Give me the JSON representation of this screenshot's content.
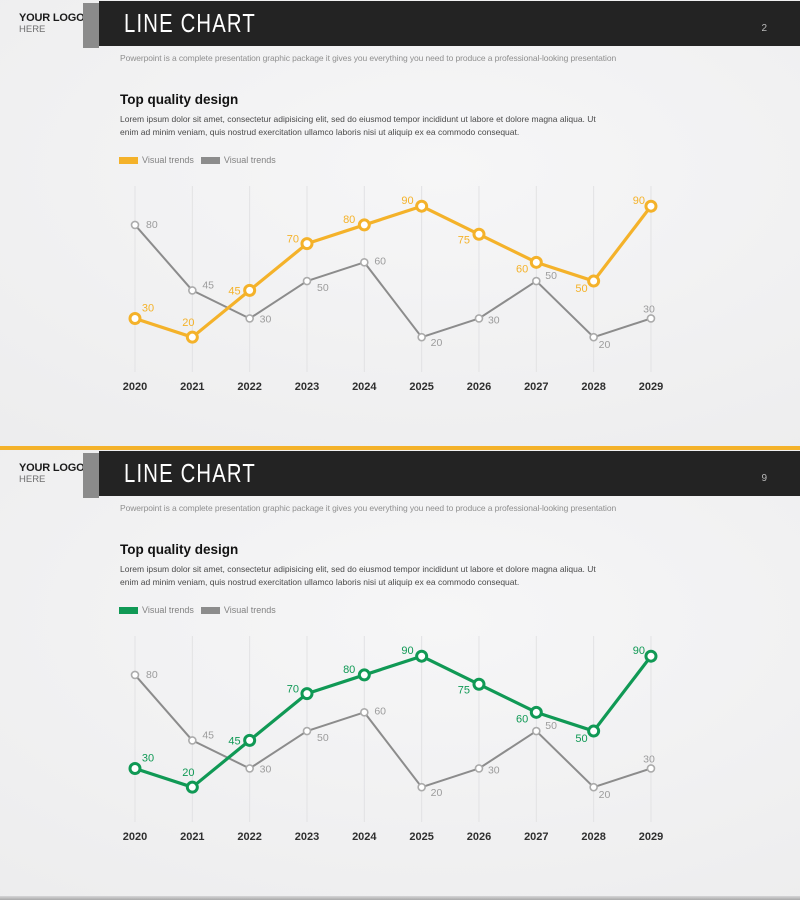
{
  "page": {
    "divider_color": "#F4B22A"
  },
  "slides": [
    {
      "logo_line1": "YOUR LOGO",
      "logo_line2": "HERE",
      "title": "LINE CHART",
      "page_number": "2",
      "subtitle": "Powerpoint is a complete presentation graphic package it gives you everything you need to produce a professional-looking presentation",
      "heading": "Top quality design",
      "body": "Lorem ipsum dolor sit amet, consectetur adipisicing elit, sed do eiusmod tempor incididunt ut labore et dolore magna aliqua. Ut enim ad minim veniam, quis nostrud exercitation ullamco laboris nisi ut aliquip ex ea commodo consequat.",
      "accent_color": "#F4B22A",
      "legend": [
        {
          "label": "Visual trends",
          "color": "#F4B22A"
        },
        {
          "label": "Visual trends",
          "color": "#8C8C8C"
        }
      ]
    },
    {
      "logo_line1": "YOUR LOGO",
      "logo_line2": "HERE",
      "title": "LINE CHART",
      "page_number": "9",
      "subtitle": "Powerpoint is a complete presentation graphic package it gives you everything you need to produce a professional-looking presentation",
      "heading": "Top quality design",
      "body": "Lorem ipsum dolor sit amet, consectetur adipisicing elit, sed do eiusmod tempor incididunt ut labore et dolore magna aliqua. Ut enim ad minim veniam, quis nostrud exercitation ullamco laboris nisi ut aliquip ex ea commodo consequat.",
      "accent_color": "#109955",
      "legend": [
        {
          "label": "Visual trends",
          "color": "#109955"
        },
        {
          "label": "Visual trends",
          "color": "#8C8C8C"
        }
      ]
    }
  ],
  "chart_data": [
    {
      "type": "line",
      "categories": [
        "2020",
        "2021",
        "2022",
        "2023",
        "2024",
        "2025",
        "2026",
        "2027",
        "2028",
        "2029"
      ],
      "series": [
        {
          "name": "Visual trends",
          "color": "#F4B22A",
          "values": [
            30,
            20,
            45,
            70,
            80,
            90,
            75,
            60,
            50,
            90
          ]
        },
        {
          "name": "Visual trends",
          "color": "#8C8C8C",
          "values": [
            80,
            45,
            30,
            50,
            60,
            20,
            30,
            50,
            20,
            30
          ]
        }
      ],
      "ylim": [
        0,
        100
      ],
      "grid": "vertical-only",
      "legend_position": "top-left",
      "data_labels": true,
      "title": "",
      "xlabel": "",
      "ylabel": ""
    },
    {
      "type": "line",
      "categories": [
        "2020",
        "2021",
        "2022",
        "2023",
        "2024",
        "2025",
        "2026",
        "2027",
        "2028",
        "2029"
      ],
      "series": [
        {
          "name": "Visual trends",
          "color": "#109955",
          "values": [
            30,
            20,
            45,
            70,
            80,
            90,
            75,
            60,
            50,
            90
          ]
        },
        {
          "name": "Visual trends",
          "color": "#8C8C8C",
          "values": [
            80,
            45,
            30,
            50,
            60,
            20,
            30,
            50,
            20,
            30
          ]
        }
      ],
      "ylim": [
        0,
        100
      ],
      "grid": "vertical-only",
      "legend_position": "top-left",
      "data_labels": true,
      "title": "",
      "xlabel": "",
      "ylabel": ""
    }
  ]
}
